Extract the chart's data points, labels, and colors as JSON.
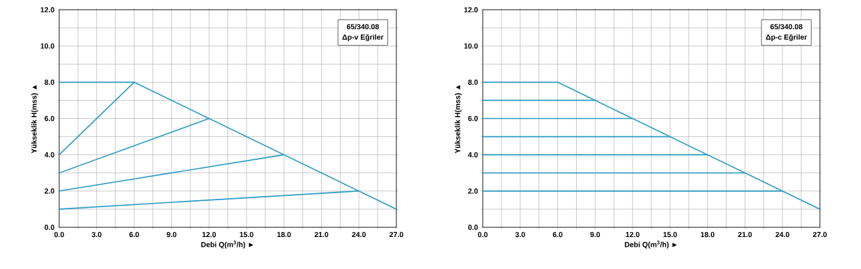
{
  "chart_data": [
    {
      "type": "line",
      "xlabel": "Debi Q(m$^{3}$/h) ►",
      "ylabel": "Yükseklik H(mss) ▲",
      "annotations": [
        "65/340.08",
        "Δp-v Eğriler"
      ],
      "grid": true,
      "xlim": [
        0,
        27
      ],
      "ylim": [
        0,
        12
      ],
      "xticks": [
        {
          "value": 0,
          "label": "0.0"
        },
        {
          "value": 1.5,
          "label": null
        },
        {
          "value": 3,
          "label": "3.0"
        },
        {
          "value": 4.5,
          "label": null
        },
        {
          "value": 6,
          "label": "6.0"
        },
        {
          "value": 7.5,
          "label": null
        },
        {
          "value": 9,
          "label": "9.0"
        },
        {
          "value": 10.5,
          "label": null
        },
        {
          "value": 12,
          "label": "12.0"
        },
        {
          "value": 13.5,
          "label": null
        },
        {
          "value": 15,
          "label": "15.0"
        },
        {
          "value": 16.5,
          "label": null
        },
        {
          "value": 18,
          "label": "18.0"
        },
        {
          "value": 19.5,
          "label": null
        },
        {
          "value": 21,
          "label": "21.0"
        },
        {
          "value": 22.5,
          "label": null
        },
        {
          "value": 24,
          "label": "24.0"
        },
        {
          "value": 25.5,
          "label": null
        },
        {
          "value": 27,
          "label": "27.0"
        }
      ],
      "yticks": [
        {
          "value": 0,
          "label": "0.0"
        },
        {
          "value": 1,
          "label": null
        },
        {
          "value": 2,
          "label": "2.0"
        },
        {
          "value": 3,
          "label": null
        },
        {
          "value": 4,
          "label": "4.0"
        },
        {
          "value": 5,
          "label": null
        },
        {
          "value": 6,
          "label": "6.0"
        },
        {
          "value": 7,
          "label": null
        },
        {
          "value": 8,
          "label": "8.0"
        },
        {
          "value": 9,
          "label": null
        },
        {
          "value": 10,
          "label": "10.0"
        },
        {
          "value": 11,
          "label": null
        },
        {
          "value": 12,
          "label": "12.0"
        }
      ],
      "series": [
        {
          "color": "#2a9cc4",
          "x": [
            0,
            6,
            27
          ],
          "values": [
            8,
            8,
            1
          ]
        },
        {
          "color": "#2a9cc4",
          "x": [
            0,
            6
          ],
          "values": [
            4,
            8
          ]
        },
        {
          "color": "#2a9cc4",
          "x": [
            0,
            12
          ],
          "values": [
            3,
            6
          ]
        },
        {
          "color": "#2a9cc4",
          "x": [
            0,
            18
          ],
          "values": [
            2,
            4
          ]
        },
        {
          "color": "#2a9cc4",
          "x": [
            0,
            24
          ],
          "values": [
            1,
            2
          ]
        }
      ]
    },
    {
      "type": "line",
      "xlabel": "Debi Q(m$^{3}$/h) ►",
      "ylabel": "Yükseklik H(mss) ▲",
      "annotations": [
        "65/340.08",
        "Δp-c Eğriler"
      ],
      "grid": true,
      "xlim": [
        0,
        27
      ],
      "ylim": [
        0,
        12
      ],
      "xticks": [
        {
          "value": 0,
          "label": "0.0"
        },
        {
          "value": 1.5,
          "label": null
        },
        {
          "value": 3,
          "label": "3.0"
        },
        {
          "value": 4.5,
          "label": null
        },
        {
          "value": 6,
          "label": "6.0"
        },
        {
          "value": 7.5,
          "label": null
        },
        {
          "value": 9,
          "label": "9.0"
        },
        {
          "value": 10.5,
          "label": null
        },
        {
          "value": 12,
          "label": "12.0"
        },
        {
          "value": 13.5,
          "label": null
        },
        {
          "value": 15,
          "label": "15.0"
        },
        {
          "value": 16.5,
          "label": null
        },
        {
          "value": 18,
          "label": "18.0"
        },
        {
          "value": 19.5,
          "label": null
        },
        {
          "value": 21,
          "label": "21.0"
        },
        {
          "value": 22.5,
          "label": null
        },
        {
          "value": 24,
          "label": "24.0"
        },
        {
          "value": 25.5,
          "label": null
        },
        {
          "value": 27,
          "label": "27.0"
        }
      ],
      "yticks": [
        {
          "value": 0,
          "label": "0.0"
        },
        {
          "value": 1,
          "label": null
        },
        {
          "value": 2,
          "label": "2.0"
        },
        {
          "value": 3,
          "label": null
        },
        {
          "value": 4,
          "label": "4.0"
        },
        {
          "value": 5,
          "label": null
        },
        {
          "value": 6,
          "label": "6.0"
        },
        {
          "value": 7,
          "label": null
        },
        {
          "value": 8,
          "label": "8.0"
        },
        {
          "value": 9,
          "label": null
        },
        {
          "value": 10,
          "label": "10.0"
        },
        {
          "value": 11,
          "label": null
        },
        {
          "value": 12,
          "label": "12.0"
        }
      ],
      "series": [
        {
          "color": "#2a9cc4",
          "x": [
            0,
            6,
            27
          ],
          "values": [
            8,
            8,
            1
          ]
        },
        {
          "color": "#2a9cc4",
          "x": [
            0,
            9
          ],
          "values": [
            7,
            7
          ]
        },
        {
          "color": "#2a9cc4",
          "x": [
            0,
            12
          ],
          "values": [
            6,
            6
          ]
        },
        {
          "color": "#2a9cc4",
          "x": [
            0,
            15
          ],
          "values": [
            5,
            5
          ]
        },
        {
          "color": "#2a9cc4",
          "x": [
            0,
            18
          ],
          "values": [
            4,
            4
          ]
        },
        {
          "color": "#2a9cc4",
          "x": [
            0,
            21
          ],
          "values": [
            3,
            3
          ]
        },
        {
          "color": "#2a9cc4",
          "x": [
            0,
            24
          ],
          "values": [
            2,
            2
          ]
        }
      ]
    }
  ]
}
